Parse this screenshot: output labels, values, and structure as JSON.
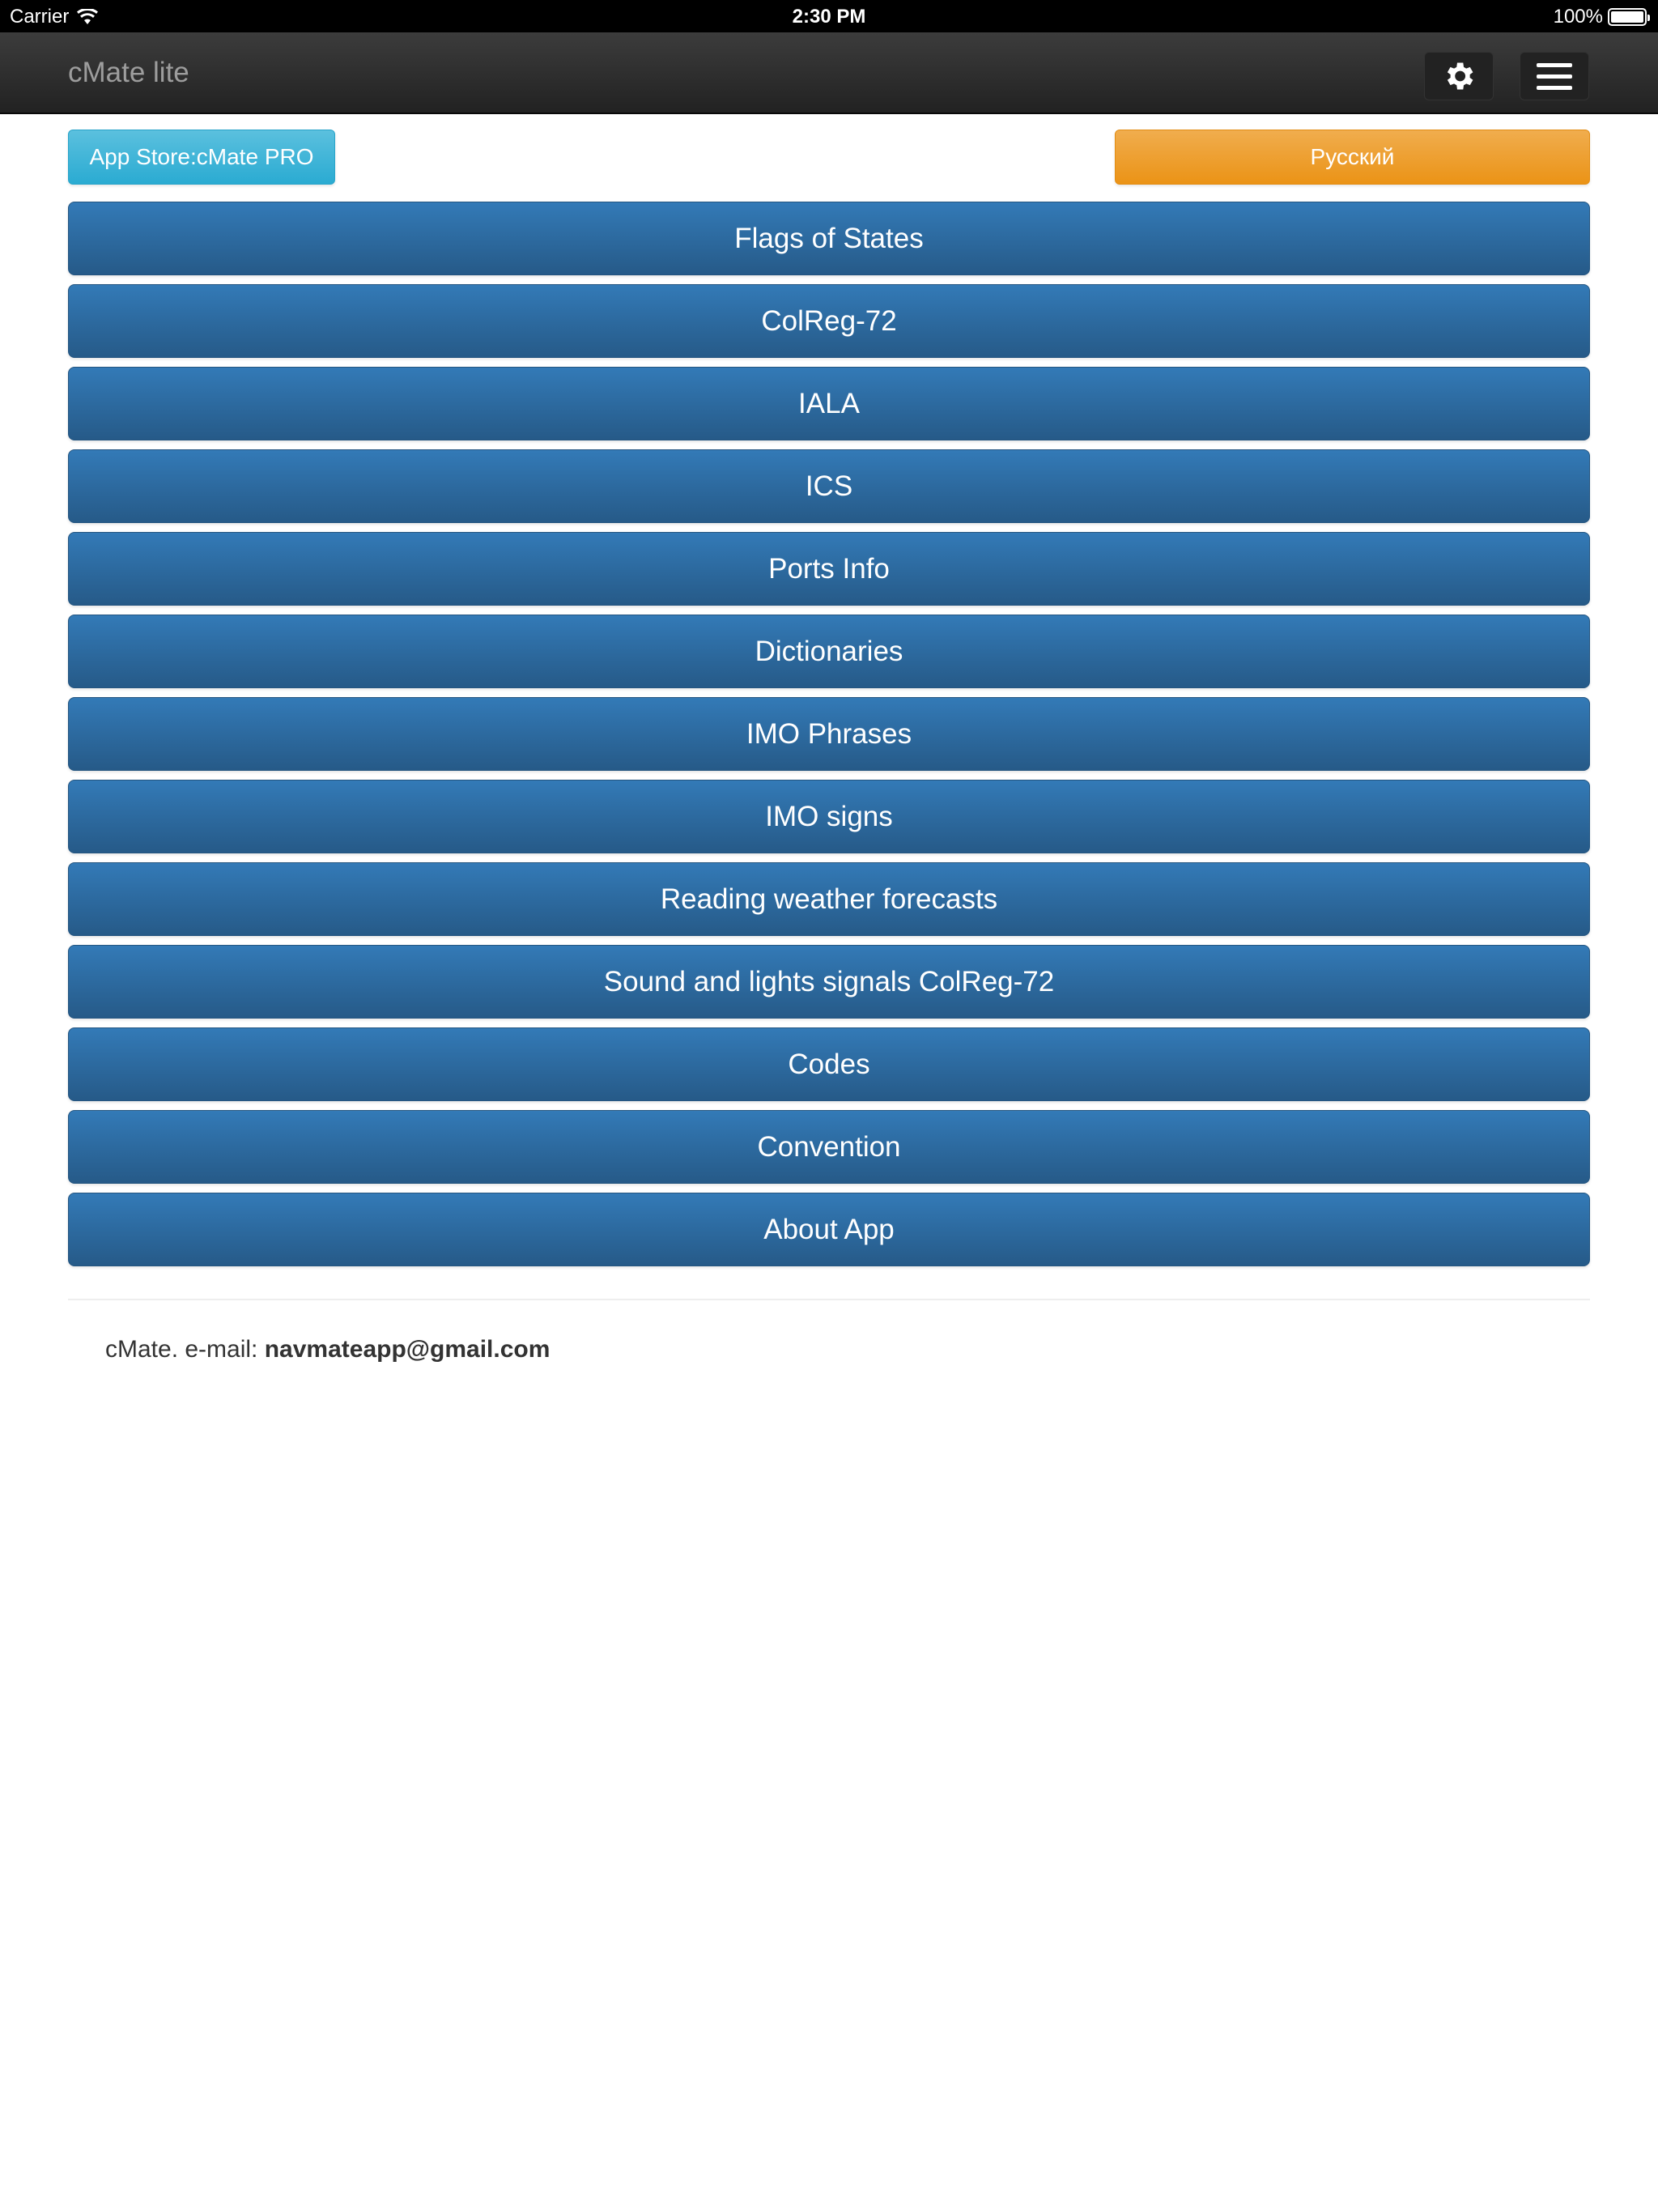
{
  "status_bar": {
    "carrier": "Carrier",
    "time": "2:30 PM",
    "battery": "100%",
    "battery_level": 100
  },
  "navbar": {
    "title": "cMate lite",
    "settings_icon": "gear-icon",
    "menu_icon": "hamburger-icon"
  },
  "top_buttons": {
    "pro": "App Store:cMate PRO",
    "language": "Русский"
  },
  "menu": {
    "items": [
      {
        "label": "Flags of States"
      },
      {
        "label": "ColReg-72"
      },
      {
        "label": "IALA"
      },
      {
        "label": "ICS"
      },
      {
        "label": "Ports Info"
      },
      {
        "label": "Dictionaries"
      },
      {
        "label": "IMO Phrases"
      },
      {
        "label": "IMO signs"
      },
      {
        "label": "Reading weather forecasts"
      },
      {
        "label": "Sound and lights signals ColReg-72"
      },
      {
        "label": "Codes"
      },
      {
        "label": "Convention"
      },
      {
        "label": "About App"
      }
    ]
  },
  "footer": {
    "prefix": "cMate. e-mail: ",
    "email": "navmateapp@gmail.com"
  },
  "colors": {
    "primary": "#337ab7",
    "info": "#5bc0de",
    "warning": "#f0ad4e",
    "navbar": "#222222"
  }
}
